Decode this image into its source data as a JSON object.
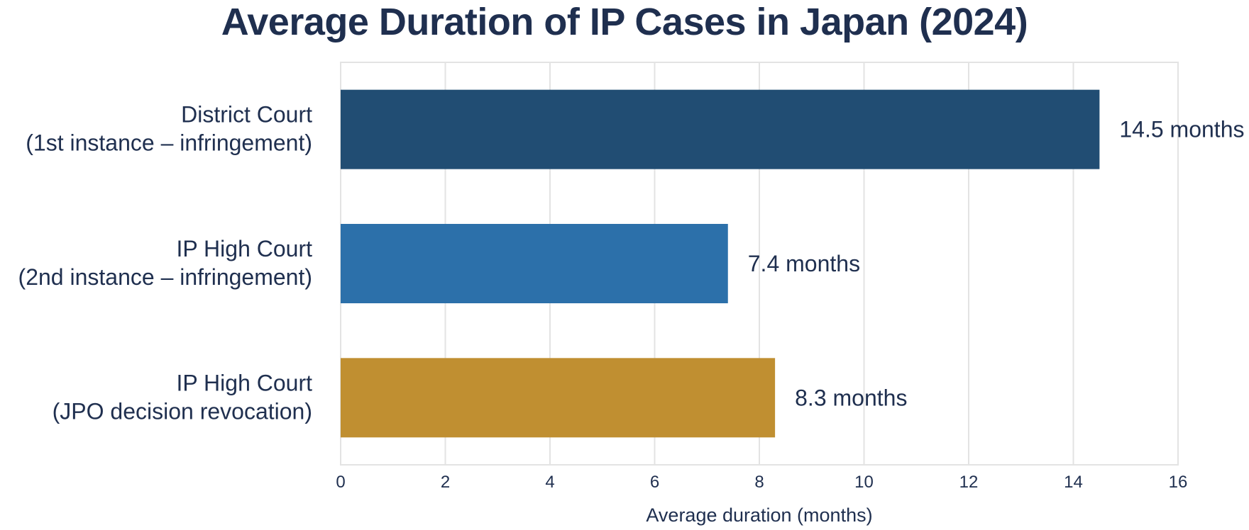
{
  "chart_data": {
    "type": "bar",
    "orientation": "horizontal",
    "title": "Average Duration of IP Cases in Japan (2024)",
    "xlabel": "Average duration (months)",
    "ylabel": "",
    "xlim": [
      0,
      16
    ],
    "x_ticks": [
      0,
      2,
      4,
      6,
      8,
      10,
      12,
      14,
      16
    ],
    "grid": true,
    "categories": [
      {
        "line1": "District Court",
        "line2": "(1st instance – infringement)"
      },
      {
        "line1": "IP High Court",
        "line2": "(2nd instance – infringement)"
      },
      {
        "line1": "IP High Court",
        "line2": "(JPO decision revocation)"
      }
    ],
    "values": [
      14.5,
      7.4,
      8.3
    ],
    "value_labels": [
      "14.5 months",
      "7.4 months",
      "8.3 months"
    ],
    "colors": [
      "#214d73",
      "#2c70aa",
      "#c08f31"
    ]
  }
}
